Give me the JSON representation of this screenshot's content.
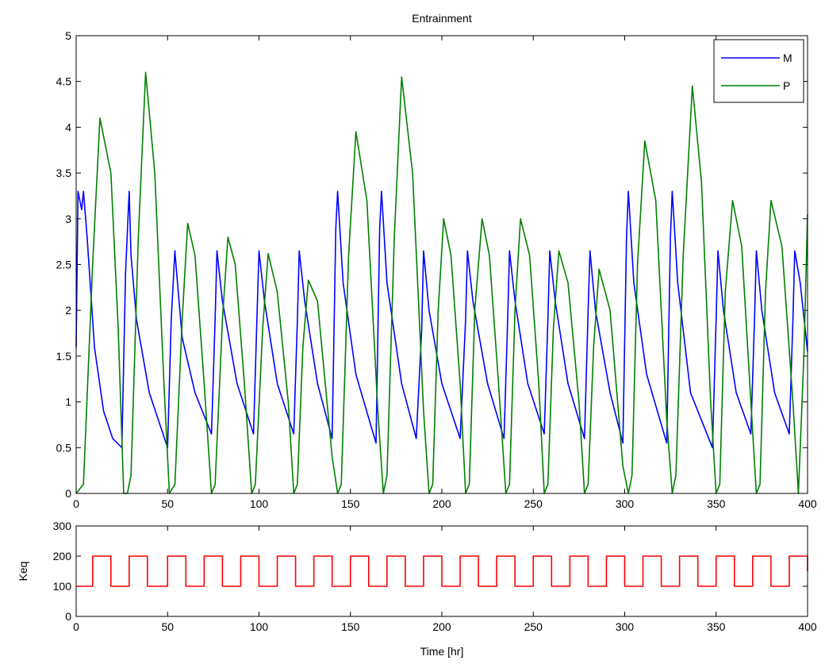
{
  "colors": {
    "M": "#0000ff",
    "P": "#008000",
    "Keq": "#ff0000"
  },
  "chart_data": [
    {
      "type": "line",
      "title": "Entrainment",
      "xlabel": "",
      "ylabel": "",
      "xlim": [
        0,
        400
      ],
      "ylim": [
        0,
        5
      ],
      "xticks": [
        0,
        50,
        100,
        150,
        200,
        250,
        300,
        350,
        400
      ],
      "yticks": [
        0,
        0.5,
        1,
        1.5,
        2,
        2.5,
        3,
        3.5,
        4,
        4.5,
        5
      ],
      "xtick_labels": [
        "0",
        "50",
        "100",
        "150",
        "200",
        "250",
        "300",
        "350",
        "400"
      ],
      "ytick_labels": [
        "0",
        "0.5",
        "1",
        "1.5",
        "2",
        "2.5",
        "3",
        "3.5",
        "4",
        "4.5",
        "5"
      ],
      "legend": {
        "position": "top-right",
        "entries": [
          "M",
          "P"
        ]
      },
      "series": [
        {
          "name": "M",
          "color": "#0000ff",
          "x": [
            0,
            1,
            3,
            4,
            6,
            10,
            15,
            20,
            25,
            27,
            29,
            30,
            33,
            40,
            50,
            52,
            54,
            55,
            58,
            65,
            74,
            76,
            77,
            80,
            88,
            97,
            99,
            100,
            103,
            110,
            119,
            121,
            122,
            125,
            132,
            140,
            142,
            143,
            146,
            153,
            164,
            166,
            167,
            170,
            178,
            186,
            189,
            190,
            193,
            200,
            210,
            213,
            214,
            217,
            225,
            234,
            236,
            237,
            240,
            247,
            256,
            258,
            259,
            262,
            269,
            278,
            280,
            281,
            284,
            292,
            299,
            301,
            302,
            305,
            312,
            323,
            325,
            326,
            329,
            336,
            348,
            350,
            351,
            354,
            361,
            369,
            371,
            372,
            375,
            382,
            390,
            392,
            393,
            396,
            400
          ],
          "values": [
            1.6,
            3.3,
            3.1,
            3.3,
            2.8,
            1.6,
            0.9,
            0.6,
            0.5,
            2.4,
            3.3,
            2.6,
            1.9,
            1.1,
            0.5,
            1.9,
            2.65,
            2.4,
            1.7,
            1.1,
            0.65,
            1.9,
            2.65,
            2.1,
            1.2,
            0.65,
            2.0,
            2.65,
            2.1,
            1.2,
            0.65,
            1.9,
            2.65,
            2.1,
            1.2,
            0.6,
            2.9,
            3.3,
            2.3,
            1.3,
            0.55,
            2.9,
            3.3,
            2.3,
            1.2,
            0.6,
            1.8,
            2.65,
            2.0,
            1.2,
            0.6,
            1.9,
            2.65,
            2.1,
            1.2,
            0.6,
            1.9,
            2.65,
            2.1,
            1.2,
            0.65,
            1.9,
            2.65,
            2.1,
            1.2,
            0.6,
            2.0,
            2.65,
            2.0,
            1.1,
            0.55,
            2.8,
            3.3,
            2.3,
            1.3,
            0.55,
            2.8,
            3.3,
            2.3,
            1.1,
            0.5,
            1.9,
            2.65,
            2.0,
            1.1,
            0.65,
            1.9,
            2.65,
            2.0,
            1.1,
            0.65,
            1.9,
            2.65,
            2.3,
            1.55
          ]
        },
        {
          "name": "P",
          "color": "#008000",
          "x": [
            0,
            4,
            9,
            13,
            19,
            23,
            26,
            28,
            30,
            34,
            38,
            43,
            48,
            51,
            54,
            58,
            61,
            65,
            70,
            74,
            76,
            80,
            83,
            87,
            92,
            96,
            98,
            102,
            105,
            110,
            116,
            119,
            121,
            124,
            127,
            132,
            140,
            143,
            145,
            149,
            153,
            159,
            165,
            168,
            170,
            174,
            178,
            184,
            190,
            193,
            195,
            198,
            201,
            205,
            210,
            213,
            215,
            218,
            222,
            226,
            231,
            235,
            237,
            240,
            243,
            248,
            253,
            256,
            258,
            261,
            264,
            269,
            275,
            278,
            280,
            283,
            286,
            292,
            299,
            302,
            304,
            307,
            311,
            317,
            323,
            326,
            328,
            332,
            337,
            342,
            347,
            350,
            352,
            355,
            359,
            364,
            369,
            372,
            374,
            377,
            380,
            386,
            392,
            395,
            398,
            400
          ],
          "values": [
            0,
            0.1,
            2.5,
            4.1,
            3.5,
            1.8,
            0,
            0,
            0.2,
            2.8,
            4.6,
            3.5,
            1.2,
            0,
            0.1,
            1.9,
            2.95,
            2.6,
            1.2,
            0,
            0.1,
            1.9,
            2.8,
            2.5,
            1.2,
            0,
            0.1,
            1.8,
            2.62,
            2.2,
            1.0,
            0,
            0.1,
            1.6,
            2.33,
            2.1,
            0.4,
            0,
            0.1,
            2.6,
            3.95,
            3.2,
            0.9,
            0,
            0.2,
            2.8,
            4.55,
            3.5,
            0.9,
            0,
            0.1,
            2.0,
            3.0,
            2.6,
            1.2,
            0,
            0.1,
            2.0,
            3.0,
            2.6,
            1.2,
            0,
            0.1,
            2.0,
            3.0,
            2.6,
            1.2,
            0,
            0.1,
            1.8,
            2.65,
            2.3,
            1.0,
            0,
            0.1,
            1.6,
            2.45,
            2.0,
            0.3,
            0,
            0.2,
            2.5,
            3.85,
            3.2,
            0.8,
            0,
            0.2,
            2.6,
            4.45,
            3.4,
            1.0,
            0,
            0.1,
            2.2,
            3.2,
            2.7,
            1.0,
            0,
            0.1,
            2.2,
            3.2,
            2.7,
            1.0,
            0,
            1.5,
            3.05
          ]
        }
      ]
    },
    {
      "type": "line",
      "title": "",
      "xlabel": "Time [hr]",
      "ylabel": "Keq",
      "xlim": [
        0,
        400
      ],
      "ylim": [
        0,
        300
      ],
      "xticks": [
        0,
        50,
        100,
        150,
        200,
        250,
        300,
        350,
        400
      ],
      "yticks": [
        0,
        100,
        200,
        300
      ],
      "xtick_labels": [
        "0",
        "50",
        "100",
        "150",
        "200",
        "250",
        "300",
        "350",
        "400"
      ],
      "ytick_labels": [
        "0",
        "100",
        "200",
        "300"
      ],
      "series": [
        {
          "color": "#ff0000",
          "x": [
            0,
            9,
            9,
            19,
            19,
            29,
            29,
            39,
            39,
            50,
            50,
            60,
            60,
            70,
            70,
            80,
            80,
            90,
            90,
            100,
            100,
            110,
            110,
            120,
            120,
            130,
            130,
            140,
            140,
            150,
            150,
            160,
            160,
            170,
            170,
            180,
            180,
            190,
            190,
            200,
            200,
            210,
            210,
            220,
            220,
            230,
            230,
            240,
            240,
            250,
            250,
            260,
            260,
            270,
            270,
            280,
            280,
            290,
            290,
            300,
            300,
            310,
            310,
            320,
            320,
            330,
            330,
            340,
            340,
            350,
            350,
            360,
            360,
            370,
            370,
            380,
            380,
            390,
            390,
            400,
            400
          ],
          "values": [
            100,
            100,
            200,
            200,
            100,
            100,
            200,
            200,
            100,
            100,
            200,
            200,
            100,
            100,
            200,
            200,
            100,
            100,
            200,
            200,
            100,
            100,
            200,
            200,
            100,
            100,
            200,
            200,
            100,
            100,
            200,
            200,
            100,
            100,
            200,
            200,
            100,
            100,
            200,
            200,
            100,
            100,
            200,
            200,
            100,
            100,
            200,
            200,
            100,
            100,
            200,
            200,
            100,
            100,
            200,
            200,
            100,
            100,
            200,
            200,
            100,
            100,
            200,
            200,
            100,
            100,
            200,
            200,
            100,
            100,
            200,
            200,
            100,
            100,
            200,
            200,
            100,
            100,
            200,
            200,
            150
          ]
        }
      ]
    }
  ]
}
